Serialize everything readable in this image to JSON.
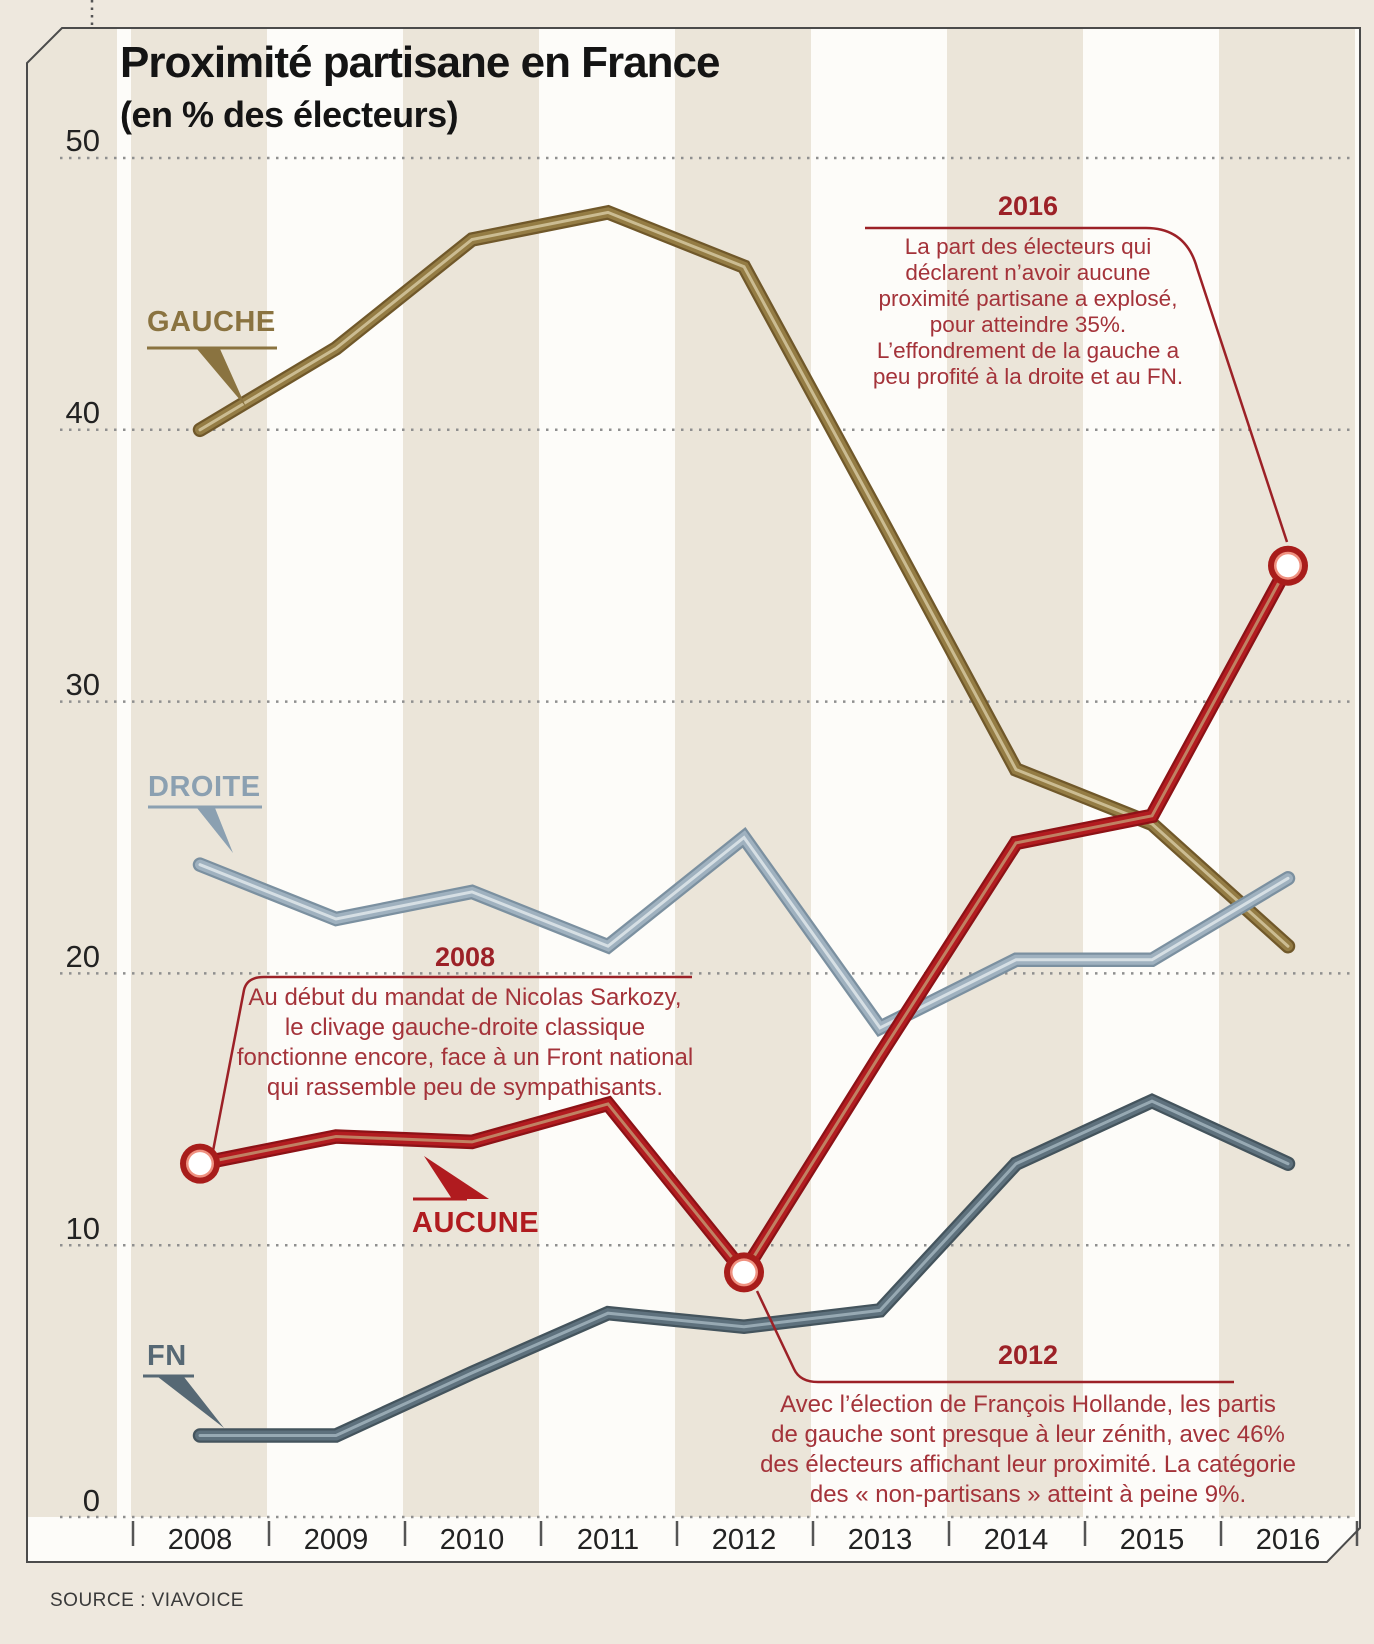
{
  "title": "Proximité partisane en France",
  "subtitle": "(en % des électeurs)",
  "source": "SOURCE : VIAVOICE",
  "chart_data": {
    "type": "line",
    "x": [
      2008,
      2009,
      2010,
      2011,
      2012,
      2013,
      2014,
      2015,
      2016
    ],
    "ylim": [
      0,
      50
    ],
    "y_ticks": [
      50,
      40,
      30,
      20,
      10,
      0
    ],
    "grid": "dotted-horizontal",
    "legend_position": "inline-callouts",
    "background_bands": "alternating vertical year columns, beige on even years",
    "series": [
      {
        "name": "GAUCHE",
        "values": [
          40,
          43,
          47,
          48,
          46,
          36.8,
          27.5,
          25.5,
          21
        ],
        "color": "#947c44",
        "edge": "#70582a",
        "highlight": "#cbbc92",
        "label_color": "#8a7340"
      },
      {
        "name": "DROITE",
        "values": [
          24,
          22,
          23,
          21,
          25,
          18,
          20.5,
          20.5,
          23.5
        ],
        "color": "#9fb1bf",
        "edge": "#7b90a0",
        "highlight": "#d6dfe4",
        "label_color": "#8ba0b1"
      },
      {
        "name": "FN",
        "values": [
          3,
          3,
          5.3,
          7.5,
          7,
          7.6,
          13,
          15.3,
          13
        ],
        "color": "#5e717d",
        "edge": "#44545d",
        "highlight": "#97a9b3",
        "label_color": "#566874"
      },
      {
        "name": "AUCUNE",
        "values": [
          13,
          14,
          13.8,
          15.2,
          9,
          17,
          24.8,
          25.8,
          35
        ],
        "color": "#b21c20",
        "edge": "#8c1216",
        "highlight": "#c08163",
        "label_color": "#b01b1f"
      }
    ],
    "markers": [
      {
        "series_index": 3,
        "year_index": 0,
        "value": 13
      },
      {
        "series_index": 3,
        "year_index": 4,
        "value": 9
      },
      {
        "series_index": 3,
        "year_index": 8,
        "value": 35
      }
    ],
    "accent_color": "#9c2127"
  },
  "annotations": {
    "y2008": {
      "heading": "2008",
      "lines": [
        "Au début du mandat de Nicolas Sarkozy,",
        "le clivage gauche-droite classique",
        "fonctionne encore, face à un Front national",
        "qui rassemble peu de sympathisants."
      ]
    },
    "y2012": {
      "heading": "2012",
      "lines": [
        "Avec l’élection de François Hollande, les partis",
        "de gauche sont presque à leur zénith, avec 46%",
        "des électeurs affichant leur proximité. La catégorie",
        "des « non-partisans » atteint à peine 9%."
      ]
    },
    "y2016": {
      "heading": "2016",
      "lines": [
        "La part des électeurs qui",
        "déclarent n’avoir aucune",
        "proximité partisane a explosé,",
        "pour atteindre 35%.",
        "L’effondrement de la gauche a",
        "peu profité à la droite et au FN."
      ]
    }
  }
}
